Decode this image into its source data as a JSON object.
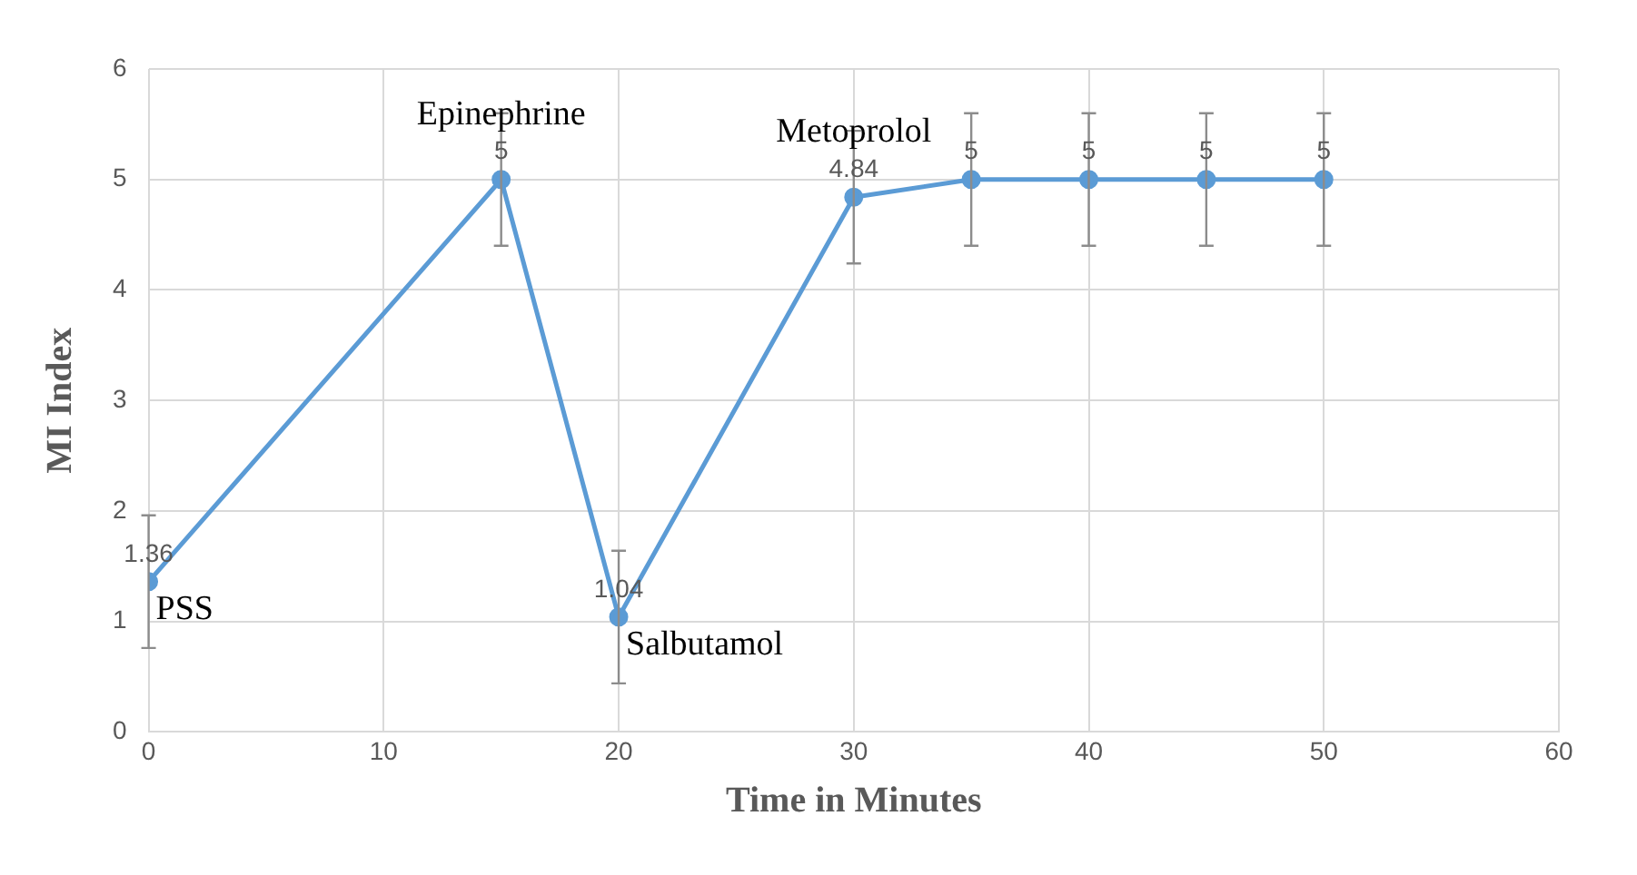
{
  "chart_data": {
    "type": "line",
    "xlabel": "Time in Minutes",
    "ylabel": "MI Index",
    "x": [
      0,
      15,
      20,
      30,
      35,
      40,
      45,
      50
    ],
    "series": [
      {
        "color": "#5b9bd5",
        "values": [
          1.36,
          5,
          1.04,
          4.84,
          5,
          5,
          5,
          5
        ],
        "errors": [
          0.6,
          0.6,
          0.6,
          0.6,
          0.6,
          0.6,
          0.6,
          0.6
        ]
      }
    ],
    "xlim": [
      0,
      60
    ],
    "xticks": [
      0,
      10,
      20,
      30,
      40,
      50,
      60
    ],
    "ylim": [
      0,
      6
    ],
    "yticks": [
      0,
      1,
      2,
      3,
      4,
      5,
      6
    ],
    "grid": true,
    "marker": "circle",
    "line_style": "solid",
    "data_labels": true,
    "legend": false,
    "annotations": [
      {
        "text": "PSS",
        "x": 0,
        "y": 1.36
      },
      {
        "text": "Epinephrine",
        "x": 15,
        "y": 5
      },
      {
        "text": "Salbutamol",
        "x": 20,
        "y": 1.04
      },
      {
        "text": "Metoprolol",
        "x": 30,
        "y": 4.84
      }
    ]
  }
}
